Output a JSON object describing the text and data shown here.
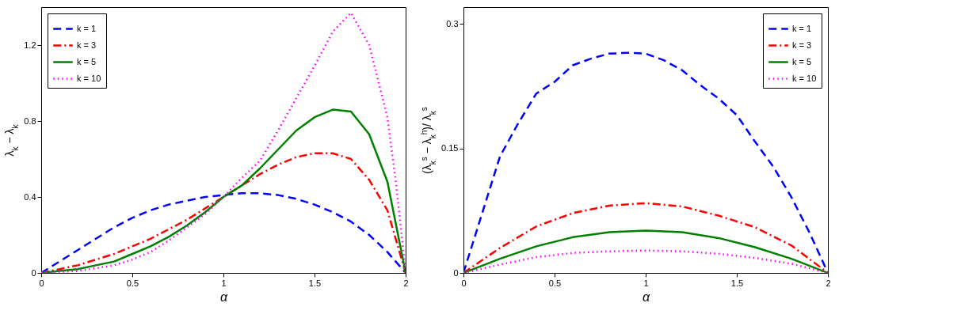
{
  "chart_data": [
    {
      "type": "line",
      "xlabel": "α",
      "ylabel": "λ$_{k}$ − λ$_{k}$",
      "xlim": [
        0,
        2
      ],
      "xticks": [
        0,
        0.5,
        1,
        1.5,
        2
      ],
      "ylim": [
        0,
        1.4
      ],
      "yticks": [
        0,
        0.4,
        0.8,
        1.2
      ],
      "grid": false,
      "legend": "top left",
      "x": [
        0,
        0.1,
        0.2,
        0.3,
        0.4,
        0.5,
        0.6,
        0.7,
        0.8,
        0.9,
        1.0,
        1.1,
        1.2,
        1.3,
        1.4,
        1.5,
        1.6,
        1.7,
        1.8,
        1.9,
        2.0
      ],
      "series": [
        {
          "name": "k = 1",
          "color": "#0000ff",
          "line_style": "dashed",
          "values": [
            0,
            0.06,
            0.12,
            0.18,
            0.24,
            0.29,
            0.33,
            0.36,
            0.38,
            0.4,
            0.41,
            0.42,
            0.42,
            0.41,
            0.39,
            0.36,
            0.32,
            0.27,
            0.2,
            0.11,
            0
          ]
        },
        {
          "name": "k = 3",
          "color": "#ff0000",
          "line_style": "dashdot",
          "values": [
            0,
            0.02,
            0.04,
            0.07,
            0.1,
            0.14,
            0.18,
            0.23,
            0.28,
            0.34,
            0.4,
            0.46,
            0.52,
            0.57,
            0.61,
            0.63,
            0.63,
            0.6,
            0.49,
            0.33,
            0
          ]
        },
        {
          "name": "k = 5",
          "color": "#008000",
          "line_style": "solid",
          "values": [
            0,
            0.01,
            0.02,
            0.04,
            0.06,
            0.1,
            0.14,
            0.19,
            0.25,
            0.32,
            0.4,
            0.46,
            0.55,
            0.65,
            0.75,
            0.82,
            0.86,
            0.85,
            0.73,
            0.48,
            0
          ]
        },
        {
          "name": "k = 10",
          "color": "#ff00ff",
          "line_style": "dotted",
          "x": [
            0,
            0.2,
            0.4,
            0.5,
            0.6,
            0.7,
            0.8,
            0.9,
            1.0,
            1.1,
            1.2,
            1.3,
            1.4,
            1.5,
            1.6,
            1.7,
            1.8,
            1.9,
            1.95,
            2.0
          ],
          "values": [
            0,
            0.01,
            0.04,
            0.07,
            0.11,
            0.17,
            0.24,
            0.31,
            0.4,
            0.5,
            0.59,
            0.75,
            0.92,
            1.09,
            1.27,
            1.37,
            1.2,
            0.82,
            0.45,
            0
          ]
        }
      ]
    },
    {
      "type": "line",
      "xlabel": "α",
      "ylabel": "(λ$_{k}$$^{s}$ − λ$_{k}$$^{h}$)/ λ$_{k}$$^{s}$",
      "xlim": [
        0,
        2
      ],
      "xticks": [
        0,
        0.5,
        1,
        1.5,
        2
      ],
      "ylim": [
        0,
        0.32
      ],
      "yticks": [
        0,
        0.15,
        0.3
      ],
      "grid": false,
      "legend": "top right",
      "series": [
        {
          "name": "k = 1",
          "color": "#0000ff",
          "line_style": "dashed",
          "x": [
            0,
            0.05,
            0.1,
            0.2,
            0.3,
            0.4,
            0.5,
            0.6,
            0.7,
            0.8,
            0.9,
            1.0,
            1.1,
            1.2,
            1.3,
            1.4,
            1.5,
            1.6,
            1.7,
            1.8,
            1.9,
            2.0
          ],
          "values": [
            0,
            0.035,
            0.07,
            0.14,
            0.18,
            0.216,
            0.23,
            0.25,
            0.258,
            0.264,
            0.265,
            0.264,
            0.256,
            0.244,
            0.226,
            0.21,
            0.19,
            0.158,
            0.128,
            0.091,
            0.048,
            0
          ]
        },
        {
          "name": "k = 3",
          "color": "#ff0000",
          "line_style": "dashdot",
          "x": [
            0,
            0.2,
            0.4,
            0.6,
            0.8,
            1.0,
            1.2,
            1.4,
            1.6,
            1.8,
            2.0
          ],
          "values": [
            0,
            0.03,
            0.056,
            0.072,
            0.081,
            0.084,
            0.08,
            0.069,
            0.055,
            0.033,
            0
          ]
        },
        {
          "name": "k = 5",
          "color": "#008000",
          "line_style": "solid",
          "x": [
            0,
            0.2,
            0.4,
            0.6,
            0.8,
            1.0,
            1.2,
            1.4,
            1.6,
            1.8,
            2.0
          ],
          "values": [
            0,
            0.017,
            0.032,
            0.043,
            0.049,
            0.051,
            0.049,
            0.042,
            0.031,
            0.017,
            0
          ]
        },
        {
          "name": "k = 10",
          "color": "#ff00ff",
          "line_style": "dotted",
          "x": [
            0,
            0.2,
            0.4,
            0.6,
            0.8,
            1.0,
            1.2,
            1.4,
            1.6,
            1.8,
            2.0
          ],
          "values": [
            0,
            0.01,
            0.019,
            0.024,
            0.026,
            0.027,
            0.026,
            0.023,
            0.018,
            0.011,
            0
          ]
        }
      ]
    }
  ]
}
